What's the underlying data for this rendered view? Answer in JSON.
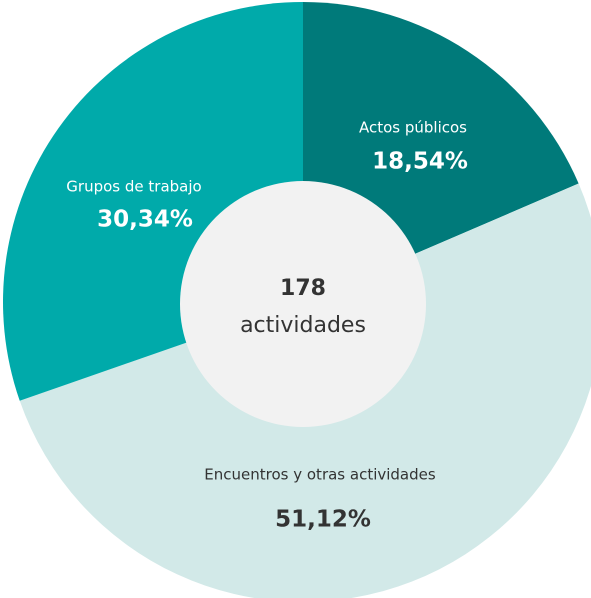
{
  "chart_data": {
    "type": "donut",
    "categories": [
      "Actos públicos",
      "Encuentros y otras actividades",
      "Grupos de trabajo"
    ],
    "values": [
      18.54,
      51.12,
      30.34
    ],
    "value_labels": [
      "18,54%",
      "51,12%",
      "30,34%"
    ],
    "colors": [
      "#007a7a",
      "#d2e9e8",
      "#00aaaa"
    ],
    "total": 178,
    "center_label": "actividades"
  }
}
